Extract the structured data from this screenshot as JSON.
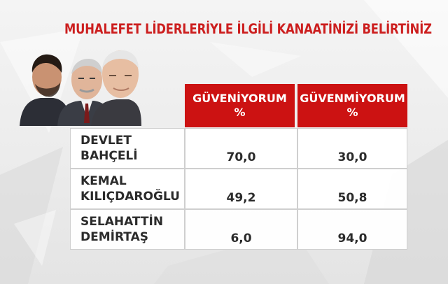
{
  "chart_data": {
    "type": "table",
    "title": "MUHALEFET LİDERLERİYLE İLGİLİ KANAATİNİZİ BELİRTİNİZ",
    "columns": [
      {
        "line1": "GÜVENİYORUM",
        "line2": "%"
      },
      {
        "line1": "GÜVENMİYORUM",
        "line2": "%"
      }
    ],
    "rows": [
      {
        "name_line1": "DEVLET",
        "name_line2": "BAHÇELİ",
        "values": [
          "70,0",
          "30,0"
        ]
      },
      {
        "name_line1": "KEMAL",
        "name_line2": "KILIÇDAROĞLU",
        "values": [
          "49,2",
          "50,8"
        ]
      },
      {
        "name_line1": "SELAHATTİN",
        "name_line2": "DEMİRTAŞ",
        "values": [
          "6,0",
          "94,0"
        ]
      }
    ]
  },
  "colors": {
    "title": "#cc1e1e",
    "header_bg": "#cc1212",
    "header_text": "#ffffff",
    "cell_text": "#2b2b2b"
  },
  "portraits": [
    "portrait-icon",
    "portrait-icon",
    "portrait-icon"
  ]
}
